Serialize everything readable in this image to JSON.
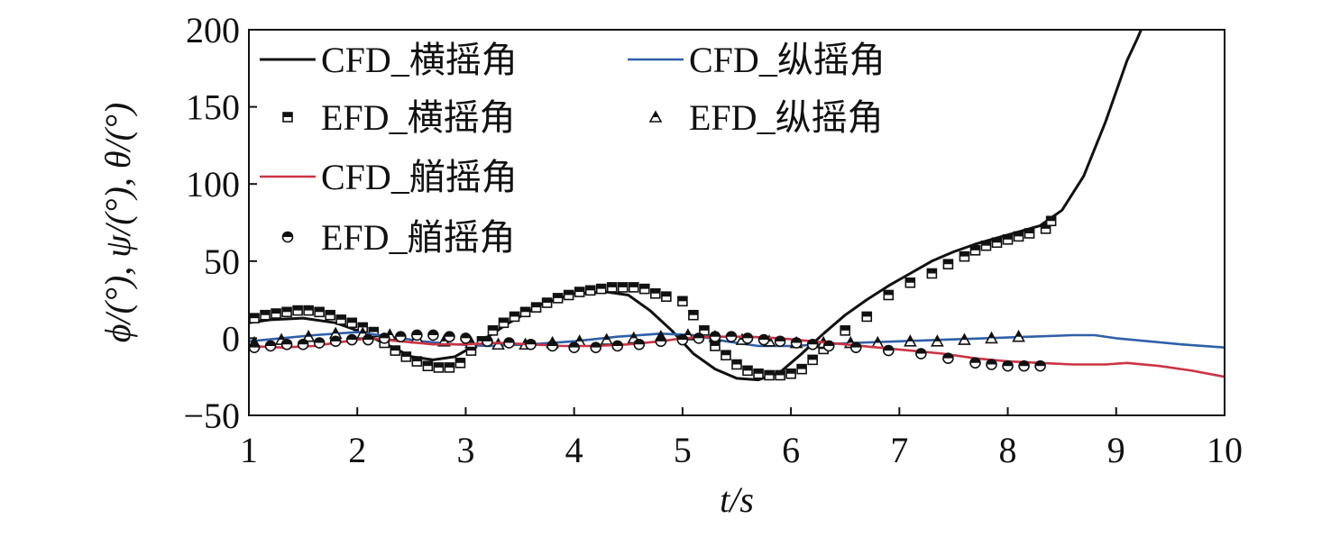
{
  "chart_data": {
    "type": "line",
    "xlabel": "t/s",
    "ylabel": "ϕ/(°), ψ/(°), θ/(°)",
    "xlim": [
      1,
      10
    ],
    "ylim": [
      -50,
      200
    ],
    "xticks": [
      "1",
      "2",
      "3",
      "4",
      "5",
      "6",
      "7",
      "8",
      "9",
      "10"
    ],
    "yticks": [
      "−50",
      "0",
      "50",
      "100",
      "150",
      "200"
    ],
    "grid": false,
    "legend_position": "top-left",
    "series": [
      {
        "name": "CFD_横摇角",
        "kind": "line",
        "color": "#111111",
        "x": [
          1.0,
          1.2,
          1.5,
          1.8,
          2.0,
          2.3,
          2.5,
          2.7,
          2.9,
          3.1,
          3.4,
          3.7,
          4.0,
          4.3,
          4.5,
          4.7,
          4.9,
          5.1,
          5.3,
          5.5,
          5.7,
          5.9,
          6.1,
          6.3,
          6.5,
          6.7,
          6.9,
          7.1,
          7.3,
          7.5,
          7.7,
          7.9,
          8.1,
          8.3,
          8.5,
          8.7,
          8.9,
          9.0,
          9.1,
          9.2,
          9.23
        ],
        "y": [
          10,
          12,
          13,
          10,
          5,
          -5,
          -12,
          -14,
          -12,
          -4,
          10,
          22,
          29,
          30,
          28,
          18,
          5,
          -10,
          -20,
          -26,
          -27,
          -22,
          -10,
          3,
          15,
          25,
          34,
          42,
          50,
          56,
          61,
          65,
          69,
          73,
          83,
          105,
          140,
          160,
          180,
          195,
          200
        ]
      },
      {
        "name": "EFD_横摇角",
        "kind": "marker",
        "marker": "square",
        "color": "#111111",
        "x": [
          1.05,
          1.15,
          1.25,
          1.35,
          1.45,
          1.55,
          1.65,
          1.75,
          1.85,
          1.95,
          2.05,
          2.15,
          2.25,
          2.35,
          2.45,
          2.55,
          2.65,
          2.75,
          2.85,
          2.95,
          3.05,
          3.15,
          3.25,
          3.35,
          3.45,
          3.55,
          3.65,
          3.75,
          3.85,
          3.95,
          4.05,
          4.15,
          4.25,
          4.35,
          4.45,
          4.55,
          4.65,
          4.75,
          4.85,
          5.0,
          5.1,
          5.2,
          5.3,
          5.4,
          5.5,
          5.6,
          5.7,
          5.8,
          5.9,
          6.0,
          6.1,
          6.2,
          6.3,
          6.5,
          6.7,
          6.9,
          7.1,
          7.3,
          7.45,
          7.6,
          7.7,
          7.8,
          7.9,
          8.0,
          8.1,
          8.2,
          8.35,
          8.4
        ],
        "y": [
          13,
          15,
          16,
          17,
          18,
          18,
          17,
          15,
          12,
          10,
          7,
          4,
          -3,
          -8,
          -12,
          -15,
          -18,
          -19,
          -19,
          -16,
          -8,
          -2,
          5,
          10,
          14,
          17,
          20,
          23,
          26,
          28,
          30,
          31,
          32,
          33,
          33,
          33,
          32,
          29,
          27,
          24,
          15,
          5,
          -5,
          -11,
          -17,
          -21,
          -23,
          -24,
          -24,
          -23,
          -20,
          -14,
          -7,
          5,
          14,
          28,
          36,
          42,
          48,
          53,
          57,
          60,
          62,
          64,
          66,
          68,
          71,
          76
        ]
      },
      {
        "name": "CFD_纵摇角",
        "kind": "line",
        "color": "#2f5fa8",
        "x": [
          1.0,
          1.3,
          1.6,
          2.0,
          2.3,
          2.6,
          2.9,
          3.2,
          3.6,
          4.0,
          4.4,
          4.8,
          5.1,
          5.4,
          5.7,
          6.0,
          6.3,
          6.6,
          7.0,
          7.4,
          7.8,
          8.2,
          8.6,
          8.8,
          9.0,
          9.3,
          9.6,
          10.0
        ],
        "y": [
          -2,
          0,
          2,
          4,
          1,
          -2,
          -4,
          -5,
          -4,
          -2,
          1,
          3,
          2,
          -2,
          -5,
          -5,
          -4,
          -3,
          -2,
          -1,
          0,
          1,
          2,
          2,
          0,
          -2,
          -4,
          -6
        ]
      },
      {
        "name": "EFD_纵摇角",
        "kind": "marker",
        "marker": "triangle",
        "color": "#111111",
        "x": [
          1.05,
          1.3,
          1.55,
          1.8,
          2.05,
          2.3,
          2.55,
          2.8,
          3.05,
          3.3,
          3.55,
          3.8,
          4.05,
          4.3,
          4.55,
          4.8,
          5.05,
          5.3,
          5.55,
          5.8,
          6.05,
          6.3,
          6.55,
          6.8,
          7.1,
          7.35,
          7.6,
          7.85,
          8.1
        ],
        "y": [
          -3,
          -1,
          1,
          3,
          3,
          2,
          0,
          -2,
          -3,
          -4,
          -4,
          -3,
          -2,
          -1,
          0,
          1,
          2,
          1,
          -1,
          -2,
          -3,
          -3,
          -3,
          -3,
          -2,
          -2,
          -1,
          0,
          1
        ]
      },
      {
        "name": "CFD_艏摇角",
        "kind": "line",
        "color": "#cc3344",
        "x": [
          1.0,
          1.3,
          1.6,
          1.9,
          2.1,
          2.4,
          2.7,
          3.0,
          3.3,
          3.6,
          3.9,
          4.2,
          4.5,
          4.8,
          5.0,
          5.3,
          5.6,
          5.9,
          6.2,
          6.5,
          6.8,
          7.1,
          7.4,
          7.7,
          8.0,
          8.3,
          8.6,
          8.9,
          9.1,
          9.4,
          9.7,
          10.0
        ],
        "y": [
          -5,
          -6,
          -5,
          -2,
          0,
          -2,
          -4,
          -4,
          -3,
          -4,
          -5,
          -5,
          -4,
          -2,
          0,
          1,
          1,
          0,
          -2,
          -4,
          -6,
          -8,
          -10,
          -13,
          -15,
          -16,
          -17,
          -17,
          -16,
          -18,
          -21,
          -25
        ]
      },
      {
        "name": "EFD_艏摇角",
        "kind": "marker",
        "marker": "circle",
        "color": "#111111",
        "x": [
          1.05,
          1.2,
          1.35,
          1.5,
          1.65,
          1.8,
          1.95,
          2.1,
          2.25,
          2.4,
          2.55,
          2.7,
          2.85,
          3.0,
          3.2,
          3.4,
          3.6,
          3.8,
          4.0,
          4.2,
          4.4,
          4.6,
          4.8,
          5.0,
          5.15,
          5.3,
          5.45,
          5.6,
          5.75,
          5.9,
          6.05,
          6.2,
          6.35,
          6.6,
          6.9,
          7.2,
          7.45,
          7.7,
          7.85,
          8.0,
          8.15,
          8.3
        ],
        "y": [
          -6,
          -5,
          -4,
          -4,
          -3,
          -2,
          -1,
          -1,
          0,
          1,
          2,
          2,
          1,
          0,
          -2,
          -3,
          -4,
          -5,
          -6,
          -6,
          -5,
          -4,
          -2,
          -1,
          0,
          1,
          1,
          0,
          -1,
          -2,
          -3,
          -4,
          -5,
          -6,
          -8,
          -10,
          -13,
          -16,
          -17,
          -18,
          -18,
          -18
        ]
      }
    ]
  }
}
